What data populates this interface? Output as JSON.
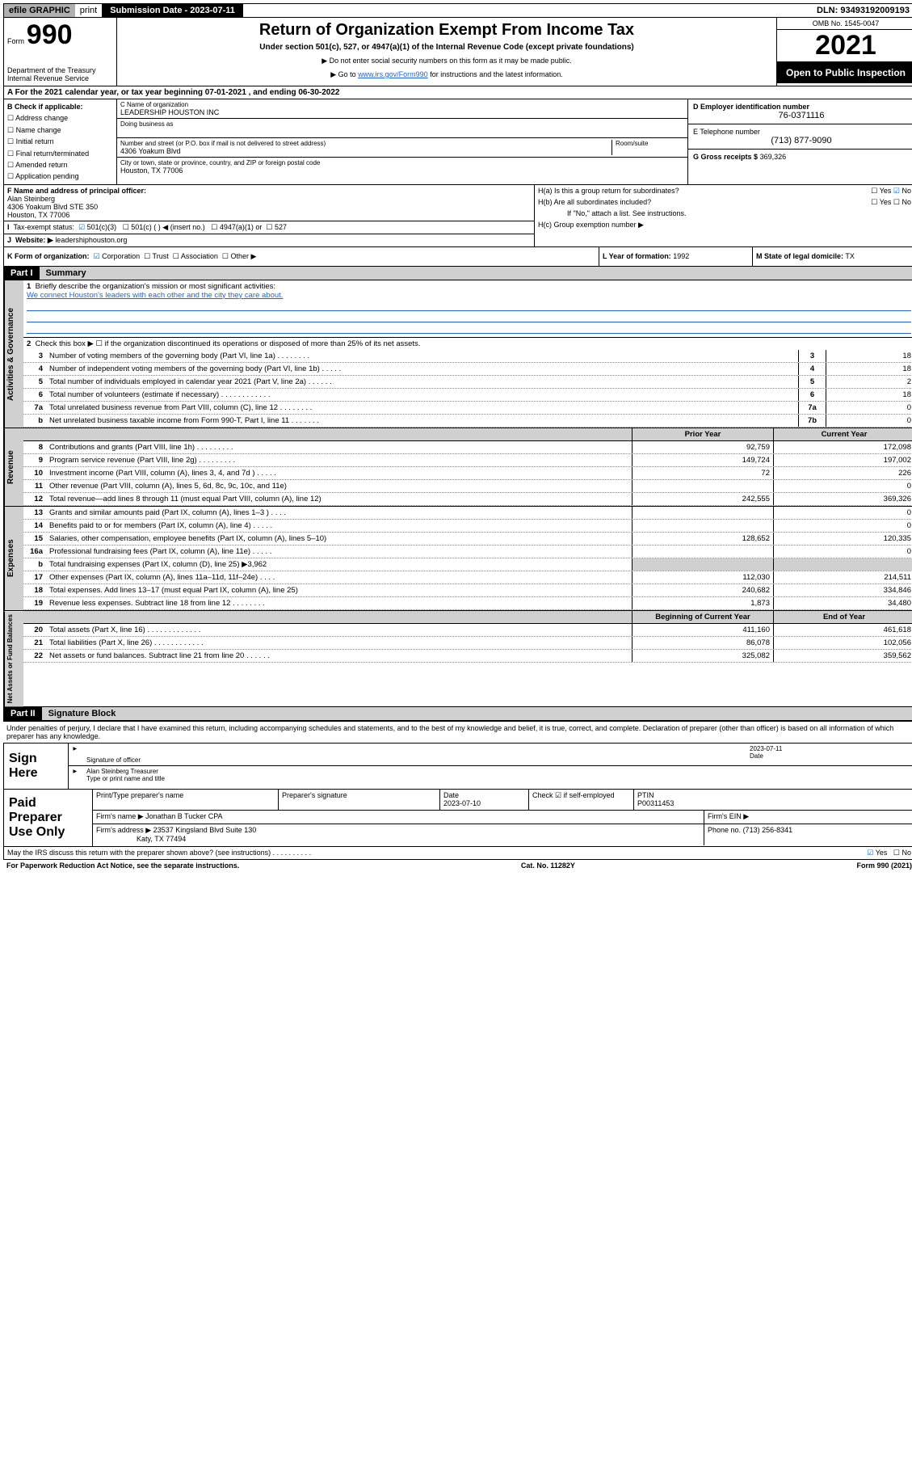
{
  "top": {
    "efile": "efile GRAPHIC",
    "print": "print",
    "subdate_label": "Submission Date - 2023-07-11",
    "dln": "DLN: 93493192009193"
  },
  "header": {
    "form_word": "Form",
    "form_num": "990",
    "dept": "Department of the Treasury\nInternal Revenue Service",
    "main_title": "Return of Organization Exempt From Income Tax",
    "sub_title": "Under section 501(c), 527, or 4947(a)(1) of the Internal Revenue Code (except private foundations)",
    "note1": "Do not enter social security numbers on this form as it may be made public.",
    "note2_pre": "Go to ",
    "note2_link": "www.irs.gov/Form990",
    "note2_post": " for instructions and the latest information.",
    "omb": "OMB No. 1545-0047",
    "year": "2021",
    "open_pub": "Open to Public Inspection"
  },
  "A": {
    "taxyear": "For the 2021 calendar year, or tax year beginning 07-01-2021  , and ending 06-30-2022",
    "B_label": "B Check if applicable:",
    "B_items": [
      "Address change",
      "Name change",
      "Initial return",
      "Final return/terminated",
      "Amended return",
      "Application pending"
    ],
    "C_label": "C Name of organization",
    "C_val": "LEADERSHIP HOUSTON INC",
    "dba_label": "Doing business as",
    "street_label": "Number and street (or P.O. box if mail is not delivered to street address)",
    "room_label": "Room/suite",
    "street_val": "4306 Yoakum Blvd",
    "city_label": "City or town, state or province, country, and ZIP or foreign postal code",
    "city_val": "Houston, TX  77006",
    "D_label": "D Employer identification number",
    "D_val": "76-0371116",
    "E_label": "E Telephone number",
    "E_val": "(713) 877-9090",
    "G_label": "G Gross receipts $",
    "G_val": "369,326"
  },
  "F": {
    "F_label": "F  Name and address of principal officer:",
    "F_name": "Alan Steinberg",
    "F_addr1": "4306 Yoakum Blvd STE 350",
    "F_addr2": "Houston, TX  77006",
    "I_label": "Tax-exempt status:",
    "I_opts": [
      "501(c)(3)",
      "501(c) (  ) ◀ (insert no.)",
      "4947(a)(1) or",
      "527"
    ],
    "J_label": "Website: ▶",
    "J_val": "leadershiphouston.org",
    "Ha": "H(a)  Is this a group return for subordinates?",
    "Hb": "H(b)  Are all subordinates included?",
    "Hb_note": "If \"No,\" attach a list. See instructions.",
    "Hc": "H(c)  Group exemption number ▶",
    "yes": "Yes",
    "no": "No"
  },
  "K": {
    "K_label": "K Form of organization:",
    "K_opts": [
      "Corporation",
      "Trust",
      "Association",
      "Other ▶"
    ],
    "L_label": "L Year of formation:",
    "L_val": "1992",
    "M_label": "M State of legal domicile:",
    "M_val": "TX"
  },
  "part1": {
    "part": "Part I",
    "title": "Summary"
  },
  "gov": {
    "label": "Activities & Governance",
    "l1_label": "Briefly describe the organization's mission or most significant activities:",
    "l1_text": "We connect Houston's leaders with each other and the city they care about.",
    "l2_label": "Check this box ▶ ☐  if the organization discontinued its operations or disposed of more than 25% of its net assets.",
    "rows": [
      {
        "n": "3",
        "t": "Number of voting members of the governing body (Part VI, line 1a)   .   .   .   .   .   .   .   .",
        "r": "3",
        "v": "18"
      },
      {
        "n": "4",
        "t": "Number of independent voting members of the governing body (Part VI, line 1b)   .   .   .   .   .",
        "r": "4",
        "v": "18"
      },
      {
        "n": "5",
        "t": "Total number of individuals employed in calendar year 2021 (Part V, line 2a)   .   .   .   .   .   .",
        "r": "5",
        "v": "2"
      },
      {
        "n": "6",
        "t": "Total number of volunteers (estimate if necessary)   .   .   .   .   .   .   .   .   .   .   .   .",
        "r": "6",
        "v": "18"
      },
      {
        "n": "7a",
        "t": "Total unrelated business revenue from Part VIII, column (C), line 12   .   .   .   .   .   .   .   .",
        "r": "7a",
        "v": "0"
      },
      {
        "n": "b",
        "t": "Net unrelated business taxable income from Form 990-T, Part I, line 11   .   .   .   .   .   .   .",
        "r": "7b",
        "v": "0"
      }
    ]
  },
  "rev": {
    "label": "Revenue",
    "hdr_prior": "Prior Year",
    "hdr_curr": "Current Year",
    "rows": [
      {
        "n": "8",
        "t": "Contributions and grants (Part VIII, line 1h)   .   .   .   .   .   .   .   .   .",
        "p": "92,759",
        "c": "172,098"
      },
      {
        "n": "9",
        "t": "Program service revenue (Part VIII, line 2g)   .   .   .   .   .   .   .   .   .",
        "p": "149,724",
        "c": "197,002"
      },
      {
        "n": "10",
        "t": "Investment income (Part VIII, column (A), lines 3, 4, and 7d )   .   .   .   .   .",
        "p": "72",
        "c": "226"
      },
      {
        "n": "11",
        "t": "Other revenue (Part VIII, column (A), lines 5, 6d, 8c, 9c, 10c, and 11e)",
        "p": "",
        "c": "0"
      },
      {
        "n": "12",
        "t": "Total revenue—add lines 8 through 11 (must equal Part VIII, column (A), line 12)",
        "p": "242,555",
        "c": "369,326"
      }
    ]
  },
  "exp": {
    "label": "Expenses",
    "rows": [
      {
        "n": "13",
        "t": "Grants and similar amounts paid (Part IX, column (A), lines 1–3 )   .   .   .   .",
        "p": "",
        "c": "0"
      },
      {
        "n": "14",
        "t": "Benefits paid to or for members (Part IX, column (A), line 4)   .   .   .   .   .",
        "p": "",
        "c": "0"
      },
      {
        "n": "15",
        "t": "Salaries, other compensation, employee benefits (Part IX, column (A), lines 5–10)",
        "p": "128,652",
        "c": "120,335"
      },
      {
        "n": "16a",
        "t": "Professional fundraising fees (Part IX, column (A), line 11e)   .   .   .   .   .",
        "p": "",
        "c": "0"
      },
      {
        "n": "b",
        "t": "Total fundraising expenses (Part IX, column (D), line 25) ▶3,962",
        "p": "shade",
        "c": "shade"
      },
      {
        "n": "17",
        "t": "Other expenses (Part IX, column (A), lines 11a–11d, 11f–24e)   .   .   .   .",
        "p": "112,030",
        "c": "214,511"
      },
      {
        "n": "18",
        "t": "Total expenses. Add lines 13–17 (must equal Part IX, column (A), line 25)",
        "p": "240,682",
        "c": "334,846"
      },
      {
        "n": "19",
        "t": "Revenue less expenses. Subtract line 18 from line 12   .   .   .   .   .   .   .   .",
        "p": "1,873",
        "c": "34,480"
      }
    ]
  },
  "na": {
    "label": "Net Assets or Fund Balances",
    "hdr_beg": "Beginning of Current Year",
    "hdr_end": "End of Year",
    "rows": [
      {
        "n": "20",
        "t": "Total assets (Part X, line 16)   .   .   .   .   .   .   .   .   .   .   .   .   .",
        "p": "411,160",
        "c": "461,618"
      },
      {
        "n": "21",
        "t": "Total liabilities (Part X, line 26)   .   .   .   .   .   .   .   .   .   .   .   .",
        "p": "86,078",
        "c": "102,056"
      },
      {
        "n": "22",
        "t": "Net assets or fund balances. Subtract line 21 from line 20   .   .   .   .   .   .",
        "p": "325,082",
        "c": "359,562"
      }
    ]
  },
  "part2": {
    "part": "Part II",
    "title": "Signature Block",
    "penalty": "Under penalties of perjury, I declare that I have examined this return, including accompanying schedules and statements, and to the best of my knowledge and belief, it is true, correct, and complete. Declaration of preparer (other than officer) is based on all information of which preparer has any knowledge."
  },
  "sign": {
    "here": "Sign Here",
    "sig_label": "Signature of officer",
    "date_label": "Date",
    "date_val": "2023-07-11",
    "name_val": "Alan Steinberg  Treasurer",
    "name_label": "Type or print name and title"
  },
  "prep": {
    "label": "Paid Preparer Use Only",
    "h1": "Print/Type preparer's name",
    "h2": "Preparer's signature",
    "h3_l": "Date",
    "h3_v": "2023-07-10",
    "h4_l": "Check ☑ if self-employed",
    "h5_l": "PTIN",
    "h5_v": "P00311453",
    "firm_name_l": "Firm's name    ▶",
    "firm_name_v": "Jonathan B Tucker CPA",
    "firm_ein_l": "Firm's EIN ▶",
    "firm_addr_l": "Firm's address ▶",
    "firm_addr_v1": "23537 Kingsland Blvd Suite 130",
    "firm_addr_v2": "Katy, TX  77494",
    "phone_l": "Phone no.",
    "phone_v": "(713) 256-8341"
  },
  "footer": {
    "discuss": "May the IRS discuss this return with the preparer shown above? (see instructions)   .   .   .   .   .   .   .   .   .   .",
    "yes": "Yes",
    "no": "No",
    "paperwork": "For Paperwork Reduction Act Notice, see the separate instructions.",
    "cat": "Cat. No. 11282Y",
    "form": "Form 990 (2021)"
  }
}
